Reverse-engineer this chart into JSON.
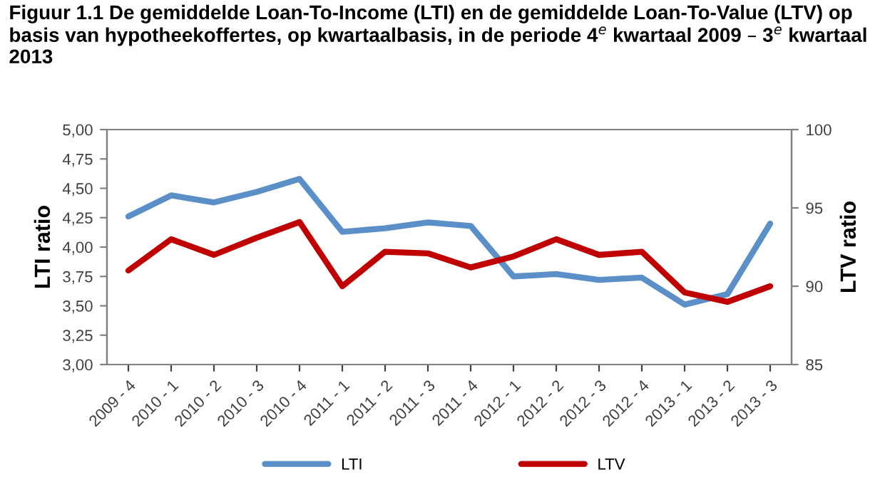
{
  "chart_data": {
    "type": "line",
    "title": "Figuur 1.1 De gemiddelde Loan-To-Income (LTI) en de gemiddelde Loan-To-Value (LTV) op basis van hypotheekoffertes, op kwartaalbasis, in de periode 4$^{e}$ kwartaal 2009 – 3$^{e}$ kwartaal 2013",
    "categories": [
      "2009 - 4",
      "2010 - 1",
      "2010 - 2",
      "2010 - 3",
      "2010 - 4",
      "2011 - 1",
      "2011 - 2",
      "2011 - 3",
      "2011 - 4",
      "2012 - 1",
      "2012 - 2",
      "2012 - 3",
      "2012 - 4",
      "2013 - 1",
      "2013 - 2",
      "2013 - 3"
    ],
    "series": [
      {
        "name": "LTI",
        "color": "#5b8fc7",
        "values": [
          4.26,
          4.44,
          4.38,
          4.47,
          4.58,
          4.13,
          4.16,
          4.21,
          4.18,
          3.75,
          3.77,
          3.72,
          3.74,
          3.51,
          3.6,
          4.2
        ]
      },
      {
        "name": "LTV",
        "color": "#c00000",
        "axis": "y2",
        "values": [
          91.0,
          93.0,
          92.0,
          93.1,
          94.1,
          90.0,
          92.2,
          92.1,
          91.2,
          91.9,
          93.0,
          92.0,
          92.2,
          89.6,
          89.0,
          90.0
        ]
      }
    ],
    "ylabel": "LTI ratio",
    "y2label": "LTV ratio",
    "ylim": [
      3,
      5
    ],
    "yticks": [
      {
        "value": 3,
        "label": "3,00"
      },
      {
        "value": 3.25,
        "label": "3,25"
      },
      {
        "value": 3.5,
        "label": "3,50"
      },
      {
        "value": 3.75,
        "label": "3,75"
      },
      {
        "value": 4,
        "label": "4,00"
      },
      {
        "value": 4.25,
        "label": "4,25"
      },
      {
        "value": 4.5,
        "label": "4,50"
      },
      {
        "value": 4.75,
        "label": "4,75"
      },
      {
        "value": 5,
        "label": "5,00"
      }
    ],
    "y2lim": [
      85,
      100
    ],
    "y2ticks": [
      85,
      90,
      95,
      100
    ],
    "grid": false,
    "legend": "bottom",
    "marker": "none",
    "line_style": "solid"
  }
}
